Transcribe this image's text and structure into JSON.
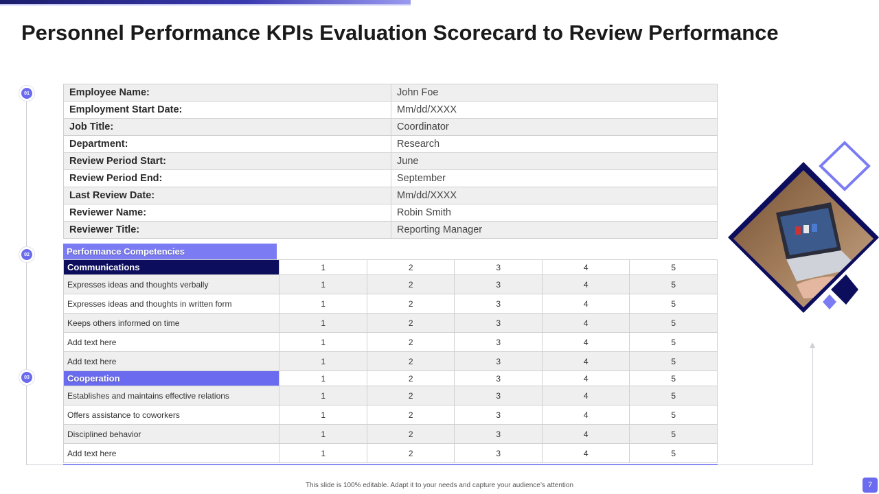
{
  "title": "Personnel Performance KPIs Evaluation Scorecard to Review Performance",
  "steps": [
    "01",
    "02",
    "03"
  ],
  "employee_info": [
    {
      "label": "Employee Name:",
      "value": "John Foe"
    },
    {
      "label": "Employment Start Date:",
      "value": "Mm/dd/XXXX"
    },
    {
      "label": "Job Title:",
      "value": "Coordinator"
    },
    {
      "label": "Department:",
      "value": "Research"
    },
    {
      "label": "Review Period Start:",
      "value": "June"
    },
    {
      "label": "Review Period End:",
      "value": "September"
    },
    {
      "label": "Last Review Date:",
      "value": "Mm/dd/XXXX"
    },
    {
      "label": "Reviewer Name:",
      "value": "Robin Smith"
    },
    {
      "label": "Reviewer Title:",
      "value": "Reporting Manager"
    }
  ],
  "competencies": {
    "header": "Performance Competencies",
    "scale": [
      "1",
      "2",
      "3",
      "4",
      "5"
    ],
    "sections": [
      {
        "name": "Communications",
        "items": [
          "Expresses ideas and thoughts verbally",
          "Expresses ideas and thoughts in written form",
          "Keeps others informed on time",
          "Add text here",
          "Add text here"
        ]
      },
      {
        "name": "Cooperation",
        "items": [
          "Establishes and maintains effective relations",
          "Offers assistance to coworkers",
          "Disciplined behavior",
          "Add text here"
        ]
      }
    ]
  },
  "footer": "This slide is 100% editable. Adapt it to your needs and capture your audience’s attention",
  "page_number": "7",
  "colors": {
    "accent": "#6b6bef",
    "dark": "#0d0d5e",
    "light_accent": "#7b7bf4"
  }
}
